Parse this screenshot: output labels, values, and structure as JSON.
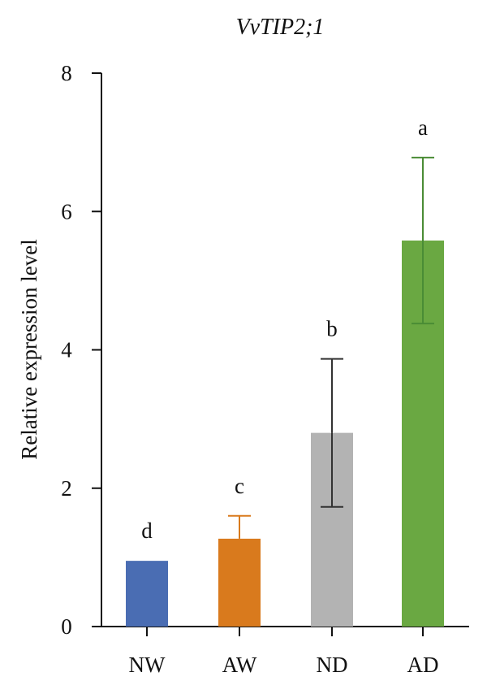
{
  "chart_data": {
    "type": "bar",
    "title": "VvTIP2;1",
    "xlabel": "",
    "ylabel": "Relative expression level",
    "ylim": [
      0,
      8
    ],
    "yticks": [
      0,
      2,
      4,
      6,
      8
    ],
    "categories": [
      "NW",
      "AW",
      "ND",
      "AD"
    ],
    "values": [
      0.95,
      1.27,
      2.8,
      5.58
    ],
    "errors": [
      0.0,
      0.33,
      1.07,
      1.2
    ],
    "significance": [
      "d",
      "c",
      "b",
      "a"
    ],
    "colors": [
      "#4a6db3",
      "#d97a1d",
      "#b3b3b3",
      "#6aa842"
    ],
    "error_colors": [
      "#4a6db3",
      "#d97a1d",
      "#333333",
      "#4a8c35"
    ],
    "grid": false,
    "legend": "none"
  }
}
